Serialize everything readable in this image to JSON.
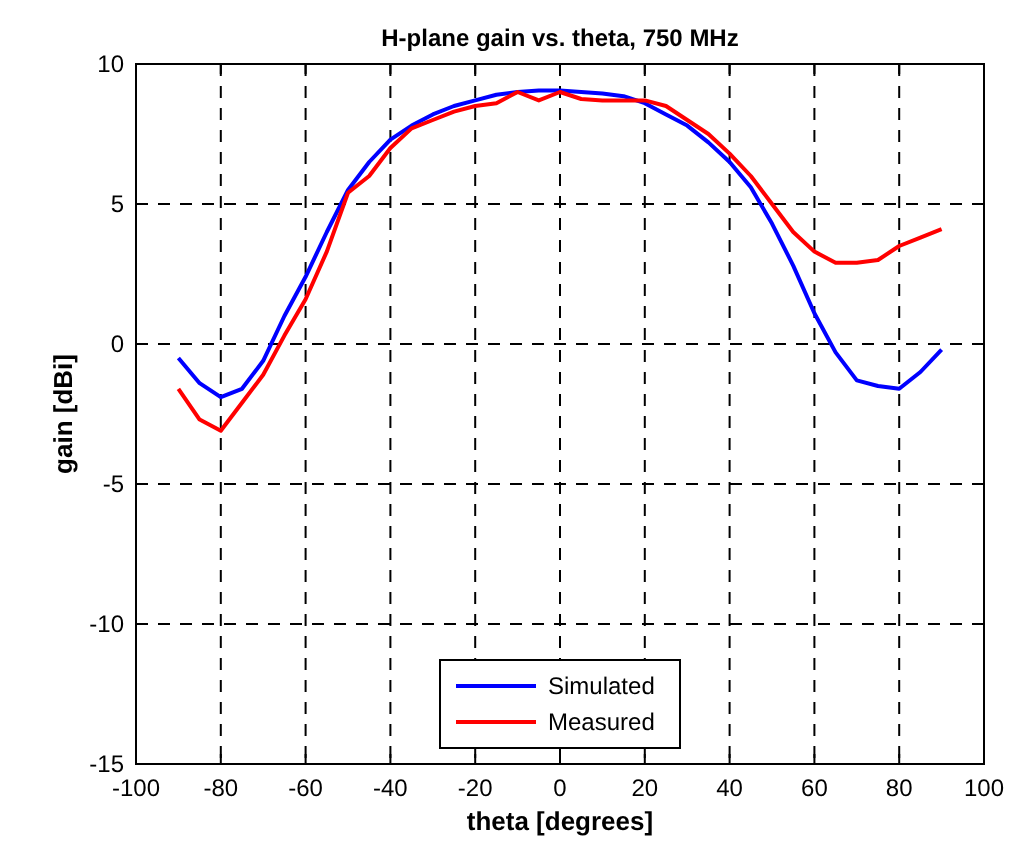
{
  "chart_data": {
    "type": "line",
    "title": "H-plane gain vs. theta, 750 MHz",
    "xlabel": "theta [degrees]",
    "ylabel": "gain [dBi]",
    "x": [
      -90,
      -85,
      -80,
      -75,
      -70,
      -65,
      -60,
      -55,
      -50,
      -45,
      -40,
      -35,
      -30,
      -25,
      -20,
      -15,
      -10,
      -5,
      0,
      5,
      10,
      15,
      20,
      25,
      30,
      35,
      40,
      45,
      50,
      55,
      60,
      65,
      70,
      75,
      80,
      85,
      90
    ],
    "series": [
      {
        "name": "Simulated",
        "color": "#0000ff",
        "values": [
          -0.5,
          -1.4,
          -1.9,
          -1.6,
          -0.6,
          1.0,
          2.4,
          4.0,
          5.5,
          6.5,
          7.3,
          7.8,
          8.2,
          8.5,
          8.7,
          8.9,
          9.0,
          9.05,
          9.05,
          9.0,
          8.95,
          8.85,
          8.6,
          8.2,
          7.8,
          7.2,
          6.5,
          5.6,
          4.3,
          2.8,
          1.1,
          -0.3,
          -1.3,
          -1.5,
          -1.6,
          -1.0,
          -0.2
        ]
      },
      {
        "name": "Measured",
        "color": "#ff0000",
        "values": [
          -1.6,
          -2.7,
          -3.1,
          -2.1,
          -1.1,
          0.3,
          1.6,
          3.3,
          5.4,
          6.0,
          7.0,
          7.7,
          8.0,
          8.3,
          8.5,
          8.6,
          9.0,
          8.7,
          9.0,
          8.75,
          8.7,
          8.7,
          8.7,
          8.5,
          8.0,
          7.5,
          6.8,
          6.0,
          5.0,
          4.0,
          3.3,
          2.9,
          2.9,
          3.0,
          3.5,
          3.8,
          4.1
        ]
      }
    ],
    "xlim": [
      -100,
      100
    ],
    "xticks": [
      -100,
      -80,
      -60,
      -40,
      -20,
      0,
      20,
      40,
      60,
      80,
      100
    ],
    "ylim": [
      -15,
      10
    ],
    "yticks": [
      -15,
      -10,
      -5,
      0,
      5,
      10
    ],
    "grid": true,
    "legend": "bottom",
    "line_style": "solid",
    "marker": "none"
  }
}
